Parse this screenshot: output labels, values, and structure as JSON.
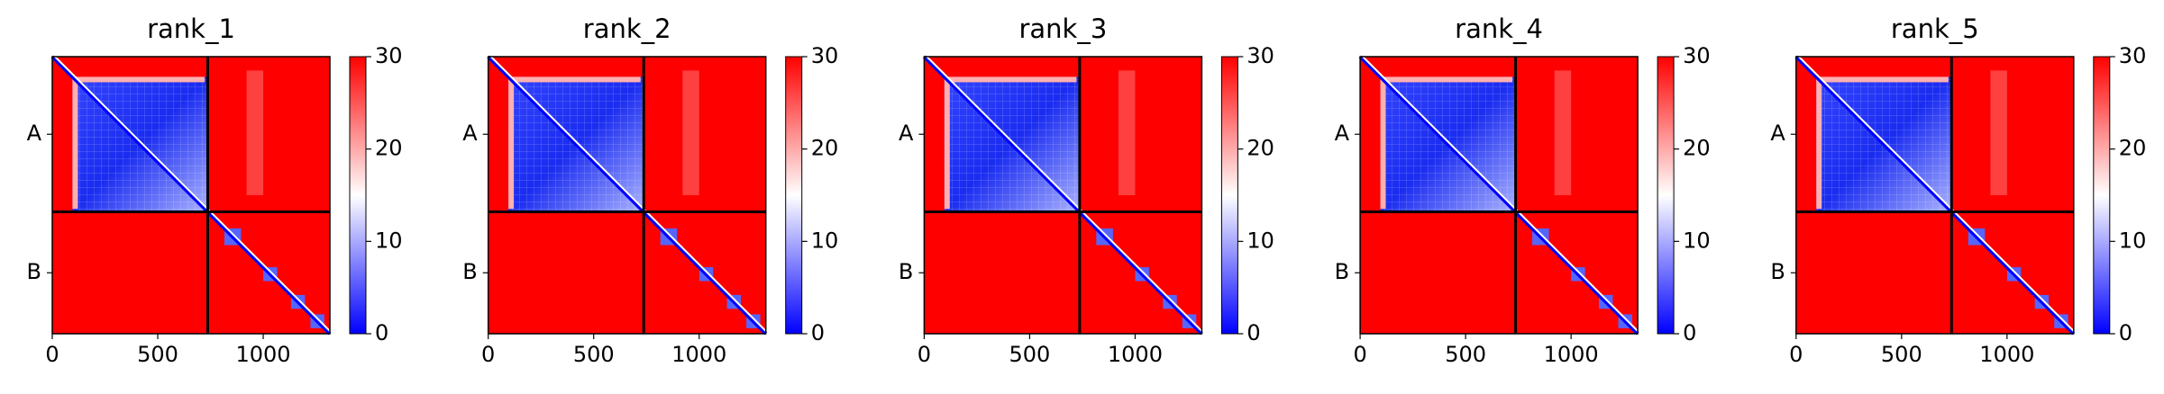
{
  "chart_data": [
    {
      "type": "heatmap",
      "title": "rank_1",
      "xlim": [
        0,
        1316
      ],
      "xticks": [
        0,
        500,
        1000
      ],
      "categories": [
        "A",
        "B"
      ],
      "colorbar": {
        "lim": [
          0,
          30
        ],
        "ticks": [
          0,
          10,
          20,
          30
        ],
        "colors": [
          "#0000ff",
          "#ffffff",
          "#ff0000"
        ]
      }
    },
    {
      "type": "heatmap",
      "title": "rank_2",
      "xlim": [
        0,
        1316
      ],
      "xticks": [
        0,
        500,
        1000
      ],
      "categories": [
        "A",
        "B"
      ],
      "colorbar": {
        "lim": [
          0,
          30
        ],
        "ticks": [
          0,
          10,
          20,
          30
        ],
        "colors": [
          "#0000ff",
          "#ffffff",
          "#ff0000"
        ]
      }
    },
    {
      "type": "heatmap",
      "title": "rank_3",
      "xlim": [
        0,
        1316
      ],
      "xticks": [
        0,
        500,
        1000
      ],
      "categories": [
        "A",
        "B"
      ],
      "colorbar": {
        "lim": [
          0,
          30
        ],
        "ticks": [
          0,
          10,
          20,
          30
        ],
        "colors": [
          "#0000ff",
          "#ffffff",
          "#ff0000"
        ]
      }
    },
    {
      "type": "heatmap",
      "title": "rank_4",
      "xlim": [
        0,
        1316
      ],
      "xticks": [
        0,
        500,
        1000
      ],
      "categories": [
        "A",
        "B"
      ],
      "colorbar": {
        "lim": [
          0,
          30
        ],
        "ticks": [
          0,
          10,
          20,
          30
        ],
        "colors": [
          "#0000ff",
          "#ffffff",
          "#ff0000"
        ]
      }
    },
    {
      "type": "heatmap",
      "title": "rank_5",
      "xlim": [
        0,
        1316
      ],
      "xticks": [
        0,
        500,
        1000
      ],
      "categories": [
        "A",
        "B"
      ],
      "colorbar": {
        "lim": [
          0,
          30
        ],
        "ticks": [
          0,
          10,
          20,
          30
        ],
        "colors": [
          "#0000ff",
          "#ffffff",
          "#ff0000"
        ]
      }
    }
  ]
}
